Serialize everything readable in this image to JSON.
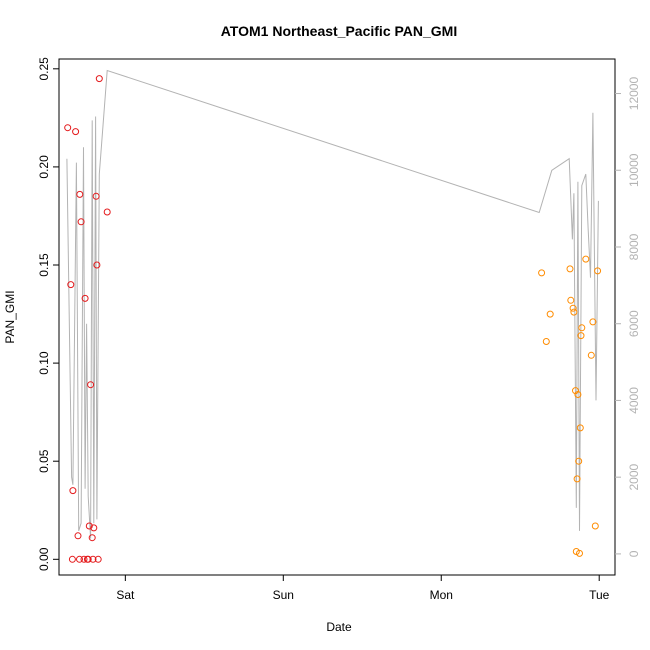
{
  "chart_data": {
    "type": "scatter",
    "title": "ATOM1 Northeast_Pacific PAN_GMI",
    "xlabel": "Date",
    "ylabel": "PAN_GMI",
    "x_ticks": [
      {
        "label": "Sat",
        "day": 1
      },
      {
        "label": "Sun",
        "day": 2
      },
      {
        "label": "Mon",
        "day": 3
      },
      {
        "label": "Tue",
        "day": 4
      }
    ],
    "xlim_days": [
      0.58,
      4.1
    ],
    "ylim": [
      -0.008,
      0.255
    ],
    "y_ticks": [
      "0.00",
      "0.05",
      "0.10",
      "0.15",
      "0.20",
      "0.25"
    ],
    "y2lim": [
      -550,
      12900
    ],
    "y2_ticks": [
      "0",
      "2000",
      "4000",
      "6000",
      "8000",
      "10000",
      "12000"
    ],
    "colors": {
      "series_early": "#e41a1c",
      "series_late": "#ff8c00",
      "altitude_line": "#b3b3b3"
    },
    "series": [
      {
        "color": "#e41a1c",
        "points": [
          {
            "x": 0.635,
            "y": 0.22
          },
          {
            "x": 0.655,
            "y": 0.14
          },
          {
            "x": 0.665,
            "y": 0.0
          },
          {
            "x": 0.668,
            "y": 0.035
          },
          {
            "x": 0.685,
            "y": 0.218
          },
          {
            "x": 0.7,
            "y": 0.012
          },
          {
            "x": 0.71,
            "y": 0.0
          },
          {
            "x": 0.712,
            "y": 0.186
          },
          {
            "x": 0.72,
            "y": 0.172
          },
          {
            "x": 0.738,
            "y": 0.0
          },
          {
            "x": 0.745,
            "y": 0.133
          },
          {
            "x": 0.76,
            "y": 0.0
          },
          {
            "x": 0.765,
            "y": 0.0
          },
          {
            "x": 0.772,
            "y": 0.017
          },
          {
            "x": 0.78,
            "y": 0.089
          },
          {
            "x": 0.79,
            "y": 0.011
          },
          {
            "x": 0.795,
            "y": 0.0
          },
          {
            "x": 0.8,
            "y": 0.016
          },
          {
            "x": 0.815,
            "y": 0.185
          },
          {
            "x": 0.82,
            "y": 0.15
          },
          {
            "x": 0.828,
            "y": 0.0
          },
          {
            "x": 0.835,
            "y": 0.245
          },
          {
            "x": 0.885,
            "y": 0.177
          }
        ]
      },
      {
        "color": "#ff8c00",
        "points": [
          {
            "x": 3.635,
            "y": 0.146
          },
          {
            "x": 3.665,
            "y": 0.111
          },
          {
            "x": 3.69,
            "y": 0.125
          },
          {
            "x": 3.815,
            "y": 0.148
          },
          {
            "x": 3.82,
            "y": 0.132
          },
          {
            "x": 3.835,
            "y": 0.128
          },
          {
            "x": 3.84,
            "y": 0.126
          },
          {
            "x": 3.85,
            "y": 0.086
          },
          {
            "x": 3.855,
            "y": 0.004
          },
          {
            "x": 3.86,
            "y": 0.041
          },
          {
            "x": 3.865,
            "y": 0.084
          },
          {
            "x": 3.87,
            "y": 0.05
          },
          {
            "x": 3.875,
            "y": 0.003
          },
          {
            "x": 3.88,
            "y": 0.067
          },
          {
            "x": 3.885,
            "y": 0.114
          },
          {
            "x": 3.89,
            "y": 0.118
          },
          {
            "x": 3.915,
            "y": 0.153
          },
          {
            "x": 3.95,
            "y": 0.104
          },
          {
            "x": 3.96,
            "y": 0.121
          },
          {
            "x": 3.975,
            "y": 0.017
          },
          {
            "x": 3.99,
            "y": 0.147
          }
        ]
      }
    ],
    "altitude_line": [
      {
        "x": 0.63,
        "a": 10300
      },
      {
        "x": 0.66,
        "a": 2000
      },
      {
        "x": 0.668,
        "a": 1800
      },
      {
        "x": 0.69,
        "a": 10200
      },
      {
        "x": 0.705,
        "a": 600
      },
      {
        "x": 0.72,
        "a": 800
      },
      {
        "x": 0.735,
        "a": 10600
      },
      {
        "x": 0.745,
        "a": 1700
      },
      {
        "x": 0.755,
        "a": 6000
      },
      {
        "x": 0.765,
        "a": 1500
      },
      {
        "x": 0.78,
        "a": 400
      },
      {
        "x": 0.79,
        "a": 11300
      },
      {
        "x": 0.8,
        "a": 800
      },
      {
        "x": 0.812,
        "a": 11400
      },
      {
        "x": 0.82,
        "a": 900
      },
      {
        "x": 0.835,
        "a": 9900
      },
      {
        "x": 0.885,
        "a": 12600
      },
      {
        "x": 3.62,
        "a": 8900
      },
      {
        "x": 3.7,
        "a": 10000
      },
      {
        "x": 3.81,
        "a": 10300
      },
      {
        "x": 3.83,
        "a": 8200
      },
      {
        "x": 3.84,
        "a": 9400
      },
      {
        "x": 3.855,
        "a": 1200
      },
      {
        "x": 3.865,
        "a": 9700
      },
      {
        "x": 3.875,
        "a": 600
      },
      {
        "x": 3.89,
        "a": 9600
      },
      {
        "x": 3.915,
        "a": 9900
      },
      {
        "x": 3.93,
        "a": 8500
      },
      {
        "x": 3.945,
        "a": 7200
      },
      {
        "x": 3.96,
        "a": 11500
      },
      {
        "x": 3.98,
        "a": 4000
      },
      {
        "x": 3.995,
        "a": 9200
      }
    ]
  }
}
